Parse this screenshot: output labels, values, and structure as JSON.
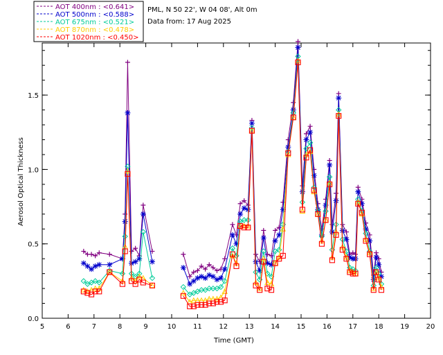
{
  "header": {
    "station": "PML, N 50 22', W 04 08', Alt 0m",
    "date_line": "Data from: 17 Aug 2025"
  },
  "chart_data": {
    "type": "line",
    "xlabel": "Time (GMT)",
    "ylabel": "Aerosol Optical Thickness",
    "xlim": [
      5,
      20
    ],
    "ylim": [
      0,
      1.85
    ],
    "xticks": [
      5,
      6,
      7,
      8,
      9,
      10,
      11,
      12,
      13,
      14,
      15,
      16,
      17,
      18,
      19,
      20
    ],
    "xtick_labels": [
      "5",
      "6",
      "7",
      "8",
      "9",
      "10",
      "11",
      "12",
      "13",
      "14",
      "15",
      "16",
      "17",
      "18",
      "19",
      "20"
    ],
    "yticks": [
      0.0,
      0.5,
      1.0,
      1.5
    ],
    "ytick_labels": [
      "0.0",
      "0.5",
      "1.0",
      "1.5"
    ],
    "grid": false,
    "legend_position": "top-left",
    "x": [
      6.6,
      6.75,
      6.9,
      7.05,
      7.2,
      7.6,
      8.1,
      8.2,
      8.3,
      8.45,
      8.6,
      8.75,
      8.9,
      9.25,
      10.45,
      10.7,
      10.85,
      11.0,
      11.15,
      11.3,
      11.45,
      11.6,
      11.75,
      11.9,
      12.05,
      12.35,
      12.5,
      12.65,
      12.8,
      12.95,
      13.1,
      13.25,
      13.4,
      13.55,
      13.7,
      13.85,
      14.0,
      14.15,
      14.3,
      14.5,
      14.7,
      14.88,
      15.05,
      15.2,
      15.35,
      15.5,
      15.65,
      15.8,
      15.95,
      16.1,
      16.2,
      16.35,
      16.45,
      16.6,
      16.75,
      16.88,
      17.0,
      17.1,
      17.2,
      17.35,
      17.5,
      17.65,
      17.8,
      17.9,
      18.0,
      18.1
    ],
    "series": [
      {
        "name": "AOT  400nm : <0.641>",
        "color": "#800080",
        "marker": "plus",
        "values": [
          0.45,
          0.43,
          0.43,
          0.42,
          0.44,
          0.43,
          0.4,
          0.7,
          1.72,
          0.45,
          0.47,
          0.42,
          0.76,
          0.45,
          0.43,
          0.28,
          0.31,
          0.32,
          0.35,
          0.33,
          0.36,
          0.34,
          0.32,
          0.33,
          0.4,
          0.63,
          0.56,
          0.77,
          0.79,
          0.76,
          1.33,
          0.43,
          0.38,
          0.59,
          0.43,
          0.42,
          0.59,
          0.61,
          0.78,
          1.2,
          1.45,
          1.86,
          0.89,
          1.24,
          1.29,
          1.0,
          0.77,
          0.6,
          0.8,
          1.06,
          0.63,
          0.84,
          1.51,
          0.63,
          0.58,
          0.43,
          0.44,
          0.43,
          0.88,
          0.8,
          0.64,
          0.56,
          0.29,
          0.44,
          0.4,
          0.31
        ]
      },
      {
        "name": "AOT  500nm : <0.588>",
        "color": "#0000cc",
        "marker": "star",
        "values": [
          0.37,
          0.35,
          0.33,
          0.35,
          0.36,
          0.36,
          0.4,
          0.65,
          1.38,
          0.37,
          0.38,
          0.4,
          0.7,
          0.38,
          0.34,
          0.23,
          0.25,
          0.27,
          0.28,
          0.27,
          0.29,
          0.28,
          0.26,
          0.27,
          0.33,
          0.56,
          0.5,
          0.7,
          0.74,
          0.73,
          1.31,
          0.38,
          0.32,
          0.54,
          0.37,
          0.36,
          0.52,
          0.56,
          0.73,
          1.15,
          1.4,
          1.82,
          0.85,
          1.2,
          1.25,
          0.96,
          0.73,
          0.56,
          0.76,
          1.03,
          0.58,
          0.79,
          1.48,
          0.59,
          0.53,
          0.41,
          0.4,
          0.4,
          0.85,
          0.77,
          0.6,
          0.52,
          0.26,
          0.41,
          0.36,
          0.28
        ]
      },
      {
        "name": "AOT  675nm : <0.521>",
        "color": "#00cc99",
        "marker": "diamond",
        "values": [
          0.25,
          0.23,
          0.24,
          0.25,
          0.24,
          0.32,
          0.3,
          0.55,
          1.02,
          0.3,
          0.28,
          0.3,
          0.58,
          0.27,
          0.21,
          0.16,
          0.17,
          0.18,
          0.19,
          0.19,
          0.2,
          0.2,
          0.2,
          0.21,
          0.25,
          0.47,
          0.42,
          0.65,
          0.66,
          0.66,
          1.28,
          0.31,
          0.26,
          0.45,
          0.3,
          0.28,
          0.45,
          0.46,
          0.63,
          1.12,
          1.38,
          1.76,
          0.78,
          1.14,
          1.18,
          0.88,
          0.72,
          0.55,
          0.72,
          0.95,
          0.46,
          0.63,
          1.4,
          0.53,
          0.45,
          0.34,
          0.33,
          0.32,
          0.8,
          0.72,
          0.57,
          0.45,
          0.22,
          0.34,
          0.3,
          0.23
        ]
      },
      {
        "name": "AOT  870nm : <0.478>",
        "color": "#ffcc00",
        "marker": "triangle",
        "values": [
          0.19,
          0.18,
          0.19,
          0.2,
          0.2,
          0.31,
          0.25,
          0.48,
          0.99,
          0.27,
          0.25,
          0.28,
          0.27,
          0.22,
          0.17,
          0.11,
          0.12,
          0.12,
          0.12,
          0.12,
          0.13,
          0.13,
          0.13,
          0.14,
          0.18,
          0.42,
          0.37,
          0.62,
          0.62,
          0.62,
          1.26,
          0.24,
          0.2,
          0.4,
          0.24,
          0.23,
          0.37,
          0.41,
          0.6,
          1.1,
          1.35,
          1.73,
          0.72,
          1.1,
          1.12,
          0.85,
          0.7,
          0.52,
          0.66,
          0.91,
          0.41,
          0.58,
          1.37,
          0.48,
          0.41,
          0.32,
          0.31,
          0.3,
          0.78,
          0.7,
          0.53,
          0.44,
          0.2,
          0.31,
          0.27,
          0.21
        ]
      },
      {
        "name": "AOT 1020nm : <0.450>",
        "color": "#ff0000",
        "marker": "square",
        "values": [
          0.18,
          0.17,
          0.16,
          0.18,
          0.18,
          0.31,
          0.23,
          0.45,
          0.97,
          0.25,
          0.23,
          0.26,
          0.24,
          0.22,
          0.15,
          0.08,
          0.08,
          0.09,
          0.09,
          0.09,
          0.1,
          0.1,
          0.11,
          0.11,
          0.12,
          0.43,
          0.35,
          0.62,
          0.61,
          0.61,
          1.26,
          0.22,
          0.19,
          0.38,
          0.2,
          0.19,
          0.37,
          0.4,
          0.42,
          1.11,
          1.35,
          1.72,
          0.73,
          1.08,
          1.13,
          0.86,
          0.7,
          0.5,
          0.66,
          0.9,
          0.39,
          0.56,
          1.36,
          0.46,
          0.4,
          0.31,
          0.3,
          0.3,
          0.77,
          0.71,
          0.52,
          0.43,
          0.19,
          0.31,
          0.26,
          0.19
        ]
      }
    ]
  }
}
